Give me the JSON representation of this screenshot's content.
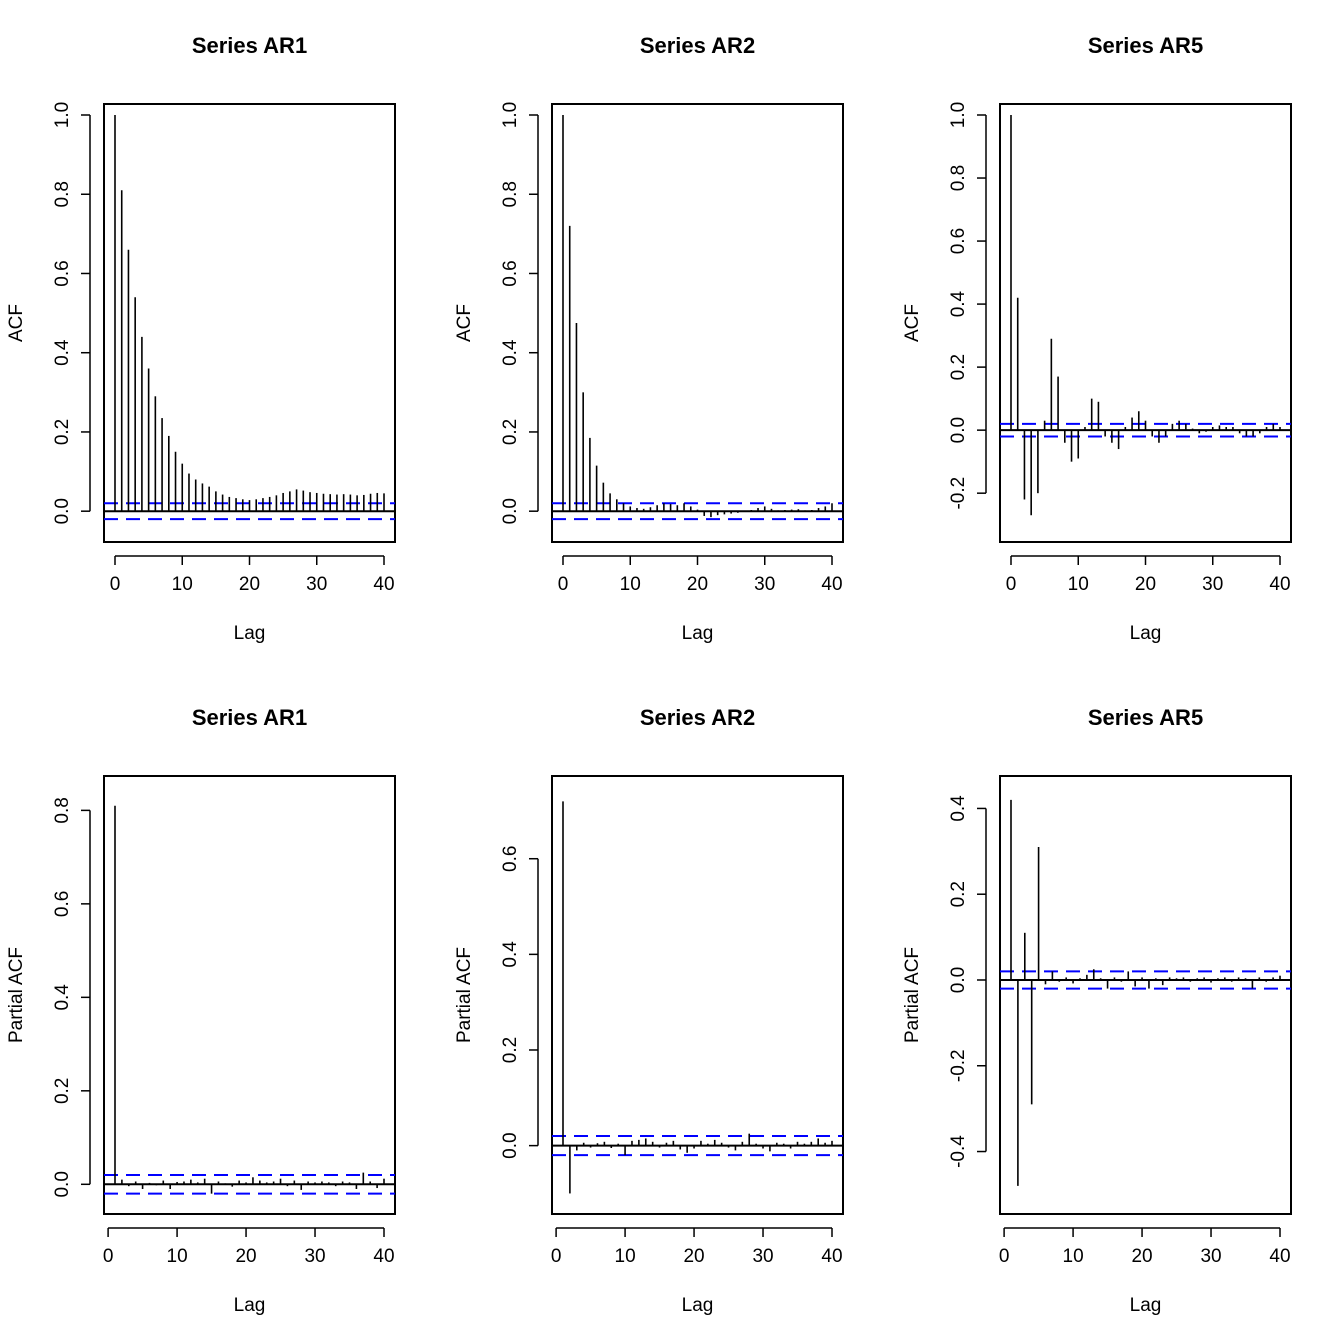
{
  "colors": {
    "spike": "#000000",
    "confidence_band": "#0000ff",
    "frame": "#000000",
    "background": "#ffffff"
  },
  "chart_data": [
    {
      "type": "bar",
      "title": "Series  AR1",
      "xlabel": "Lag",
      "ylabel": "ACF",
      "xlim": [
        0,
        40
      ],
      "ylim": [
        -0.05,
        1.0
      ],
      "xticks": [
        0,
        10,
        20,
        30,
        40
      ],
      "yticks": [
        0.0,
        0.2,
        0.4,
        0.6,
        0.8,
        1.0
      ],
      "ytick_labels": [
        "0.0",
        "0.2",
        "0.4",
        "0.6",
        "0.8",
        "1.0"
      ],
      "conf_band": 0.02,
      "x": [
        0,
        1,
        2,
        3,
        4,
        5,
        6,
        7,
        8,
        9,
        10,
        11,
        12,
        13,
        14,
        15,
        16,
        17,
        18,
        19,
        20,
        21,
        22,
        23,
        24,
        25,
        26,
        27,
        28,
        29,
        30,
        31,
        32,
        33,
        34,
        35,
        36,
        37,
        38,
        39,
        40
      ],
      "values": [
        1.0,
        0.81,
        0.66,
        0.54,
        0.44,
        0.36,
        0.29,
        0.235,
        0.19,
        0.15,
        0.12,
        0.095,
        0.08,
        0.07,
        0.062,
        0.05,
        0.042,
        0.036,
        0.033,
        0.03,
        0.028,
        0.03,
        0.033,
        0.036,
        0.04,
        0.046,
        0.05,
        0.055,
        0.052,
        0.048,
        0.046,
        0.044,
        0.043,
        0.042,
        0.043,
        0.042,
        0.04,
        0.041,
        0.044,
        0.046,
        0.045
      ]
    },
    {
      "type": "bar",
      "title": "Series  AR2",
      "xlabel": "Lag",
      "ylabel": "ACF",
      "xlim": [
        0,
        40
      ],
      "ylim": [
        -0.05,
        1.0
      ],
      "xticks": [
        0,
        10,
        20,
        30,
        40
      ],
      "yticks": [
        0.0,
        0.2,
        0.4,
        0.6,
        0.8,
        1.0
      ],
      "ytick_labels": [
        "0.0",
        "0.2",
        "0.4",
        "0.6",
        "0.8",
        "1.0"
      ],
      "conf_band": 0.02,
      "x": [
        0,
        1,
        2,
        3,
        4,
        5,
        6,
        7,
        8,
        9,
        10,
        11,
        12,
        13,
        14,
        15,
        16,
        17,
        18,
        19,
        20,
        21,
        22,
        23,
        24,
        25,
        26,
        27,
        28,
        29,
        30,
        31,
        32,
        33,
        34,
        35,
        36,
        37,
        38,
        39,
        40
      ],
      "values": [
        1.0,
        0.72,
        0.475,
        0.3,
        0.185,
        0.115,
        0.072,
        0.045,
        0.03,
        0.02,
        0.012,
        0.008,
        0.006,
        0.01,
        0.015,
        0.02,
        0.018,
        0.015,
        0.02,
        0.012,
        0.004,
        -0.012,
        -0.015,
        -0.01,
        -0.008,
        -0.006,
        -0.004,
        -0.002,
        0.003,
        0.008,
        0.012,
        0.006,
        0.002,
        0.003,
        0.004,
        0.005,
        0.002,
        0.003,
        0.008,
        0.012,
        0.02
      ]
    },
    {
      "type": "bar",
      "title": "Series  AR5",
      "xlabel": "Lag",
      "ylabel": "ACF",
      "xlim": [
        0,
        40
      ],
      "ylim": [
        -0.32,
        1.0
      ],
      "xticks": [
        0,
        10,
        20,
        30,
        40
      ],
      "yticks": [
        -0.2,
        0.0,
        0.2,
        0.4,
        0.6,
        0.8,
        1.0
      ],
      "ytick_labels": [
        "-0.2",
        "0.0",
        "0.2",
        "0.4",
        "0.6",
        "0.8",
        "1.0"
      ],
      "conf_band": 0.02,
      "x": [
        0,
        1,
        2,
        3,
        4,
        5,
        6,
        7,
        8,
        9,
        10,
        11,
        12,
        13,
        14,
        15,
        16,
        17,
        18,
        19,
        20,
        21,
        22,
        23,
        24,
        25,
        26,
        27,
        28,
        29,
        30,
        31,
        32,
        33,
        34,
        35,
        36,
        37,
        38,
        39,
        40
      ],
      "values": [
        1.0,
        0.42,
        -0.22,
        -0.27,
        -0.2,
        0.03,
        0.29,
        0.17,
        -0.04,
        -0.1,
        -0.09,
        0.01,
        0.1,
        0.09,
        -0.02,
        -0.04,
        -0.06,
        0.01,
        0.04,
        0.06,
        0.03,
        -0.02,
        -0.04,
        -0.02,
        0.02,
        0.03,
        0.02,
        0.005,
        -0.01,
        -0.005,
        0.01,
        0.015,
        0.01,
        0.01,
        -0.01,
        -0.02,
        -0.02,
        -0.01,
        0.01,
        0.02,
        0.01
      ]
    },
    {
      "type": "bar",
      "title": "Series  AR1",
      "xlabel": "Lag",
      "ylabel": "Partial ACF",
      "xlim": [
        1,
        40
      ],
      "ylim": [
        -0.04,
        0.85
      ],
      "xticks": [
        0,
        10,
        20,
        30,
        40
      ],
      "yticks": [
        0.0,
        0.2,
        0.4,
        0.6,
        0.8
      ],
      "ytick_labels": [
        "0.0",
        "0.2",
        "0.4",
        "0.6",
        "0.8"
      ],
      "conf_band": 0.02,
      "x": [
        1,
        2,
        3,
        4,
        5,
        6,
        7,
        8,
        9,
        10,
        11,
        12,
        13,
        14,
        15,
        16,
        17,
        18,
        19,
        20,
        21,
        22,
        23,
        24,
        25,
        26,
        27,
        28,
        29,
        30,
        31,
        32,
        33,
        34,
        35,
        36,
        37,
        38,
        39,
        40
      ],
      "values": [
        0.81,
        0.01,
        -0.004,
        0.006,
        -0.01,
        0.003,
        -0.002,
        0.008,
        -0.01,
        0.005,
        0.006,
        0.01,
        0.004,
        0.012,
        -0.02,
        0.006,
        0.002,
        -0.005,
        0.008,
        0.004,
        0.015,
        0.008,
        0.004,
        0.006,
        0.012,
        -0.004,
        0.008,
        -0.012,
        0.006,
        0.004,
        0.006,
        0.004,
        -0.004,
        0.006,
        0.004,
        -0.01,
        0.025,
        0.006,
        -0.008,
        0.012
      ]
    },
    {
      "type": "bar",
      "title": "Series  AR2",
      "xlabel": "Lag",
      "ylabel": "Partial ACF",
      "xlim": [
        1,
        40
      ],
      "ylim": [
        -0.12,
        0.75
      ],
      "xticks": [
        0,
        10,
        20,
        30,
        40
      ],
      "yticks": [
        0.0,
        0.2,
        0.4,
        0.6
      ],
      "ytick_labels": [
        "0.0",
        "0.2",
        "0.4",
        "0.6"
      ],
      "conf_band": 0.02,
      "x": [
        1,
        2,
        3,
        4,
        5,
        6,
        7,
        8,
        9,
        10,
        11,
        12,
        13,
        14,
        15,
        16,
        17,
        18,
        19,
        20,
        21,
        22,
        23,
        24,
        25,
        26,
        27,
        28,
        29,
        30,
        31,
        32,
        33,
        34,
        35,
        36,
        37,
        38,
        39,
        40
      ],
      "values": [
        0.72,
        -0.1,
        -0.01,
        0.006,
        -0.004,
        0.005,
        0.008,
        -0.005,
        0.004,
        -0.02,
        0.01,
        0.012,
        0.015,
        0.008,
        -0.004,
        0.006,
        0.01,
        -0.008,
        -0.015,
        -0.006,
        0.01,
        0.004,
        0.012,
        0.006,
        -0.004,
        -0.01,
        0.008,
        0.025,
        0.004,
        -0.006,
        -0.012,
        0.006,
        0.004,
        -0.006,
        0.008,
        0.004,
        0.008,
        0.015,
        0.006,
        0.01
      ]
    },
    {
      "type": "bar",
      "title": "Series  AR5",
      "xlabel": "Lag",
      "ylabel": "Partial ACF",
      "xlim": [
        1,
        40
      ],
      "ylim": [
        -0.52,
        0.45
      ],
      "xticks": [
        0,
        10,
        20,
        30,
        40
      ],
      "yticks": [
        -0.4,
        -0.2,
        0.0,
        0.2,
        0.4
      ],
      "ytick_labels": [
        "-0.4",
        "-0.2",
        "0.0",
        "0.2",
        "0.4"
      ],
      "conf_band": 0.02,
      "x": [
        1,
        2,
        3,
        4,
        5,
        6,
        7,
        8,
        9,
        10,
        11,
        12,
        13,
        14,
        15,
        16,
        17,
        18,
        19,
        20,
        21,
        22,
        23,
        24,
        25,
        26,
        27,
        28,
        29,
        30,
        31,
        32,
        33,
        34,
        35,
        36,
        37,
        38,
        39,
        40
      ],
      "values": [
        0.42,
        -0.48,
        0.11,
        -0.29,
        0.31,
        -0.01,
        0.02,
        -0.004,
        0.006,
        -0.008,
        0.004,
        0.012,
        0.025,
        0.004,
        -0.02,
        0.006,
        -0.004,
        0.02,
        -0.015,
        0.006,
        -0.02,
        0.004,
        -0.012,
        0.006,
        0.004,
        0.006,
        -0.004,
        0.004,
        0.006,
        -0.006,
        0.004,
        0.006,
        -0.004,
        0.006,
        0.004,
        -0.02,
        0.006,
        -0.004,
        0.006,
        0.01
      ]
    }
  ]
}
